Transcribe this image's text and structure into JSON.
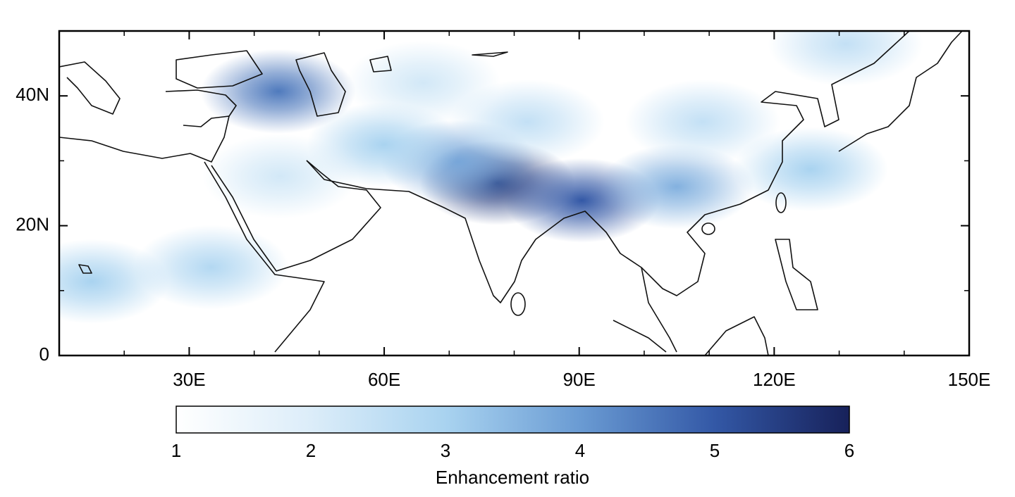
{
  "chart_data": {
    "type": "map",
    "xlim": [
      10,
      150
    ],
    "ylim": [
      0,
      50
    ],
    "xticks": [
      {
        "value": 30,
        "label": "30E"
      },
      {
        "value": 60,
        "label": "60E"
      },
      {
        "value": 90,
        "label": "90E"
      },
      {
        "value": 120,
        "label": "120E"
      },
      {
        "value": 150,
        "label": "150E"
      }
    ],
    "yticks": [
      0,
      {
        "value": 20,
        "label": "20N"
      },
      {
        "value": 40,
        "label": "40N"
      }
    ],
    "xminorticks": [
      20,
      40,
      50,
      70,
      80,
      100,
      110,
      130,
      140
    ],
    "yminorticks": [
      10,
      30
    ],
    "hotspots": [
      {
        "lon": 77.4,
        "lat": 26.6,
        "value": 5.5
      },
      {
        "lon": 90.4,
        "lat": 23.9,
        "value": 5
      },
      {
        "lon": 43.7,
        "lat": 40.7,
        "value": 4.5
      },
      {
        "lon": 71.4,
        "lat": 29.8,
        "value": 3.8
      },
      {
        "lon": 105,
        "lat": 26,
        "value": 3.6
      },
      {
        "lon": 125.6,
        "lat": 28.7,
        "value": 3
      },
      {
        "lon": 15,
        "lat": 11.4,
        "value": 3
      },
      {
        "lon": 33.4,
        "lat": 13.6,
        "value": 2.8
      },
      {
        "lon": 60,
        "lat": 32.5,
        "value": 3
      },
      {
        "lon": 82,
        "lat": 36,
        "value": 2.5
      },
      {
        "lon": 109,
        "lat": 36,
        "value": 2.5
      },
      {
        "lon": 44,
        "lat": 27.6,
        "value": 2.2
      },
      {
        "lon": 131,
        "lat": 48,
        "value": 2.5
      },
      {
        "lon": 66,
        "lat": 42,
        "value": 2.2
      }
    ],
    "colorbar": {
      "label": "Enhancement ratio",
      "lim": [
        1,
        6
      ],
      "ticks": [
        1,
        2,
        3,
        4,
        5,
        6
      ],
      "colormap": [
        {
          "value": 1,
          "color": "#ffffff"
        },
        {
          "value": 2,
          "color": "#dcedf9"
        },
        {
          "value": 3,
          "color": "#a9d3f0"
        },
        {
          "value": 4,
          "color": "#6a9bd3"
        },
        {
          "value": 5,
          "color": "#3358a6"
        },
        {
          "value": 6,
          "color": "#17215a"
        }
      ]
    }
  }
}
